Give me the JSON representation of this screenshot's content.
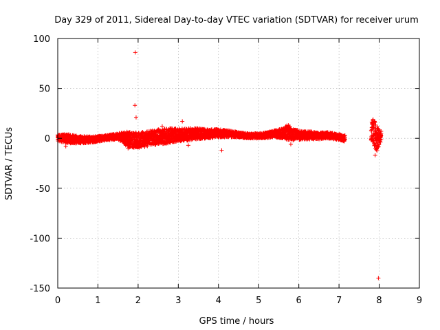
{
  "chart_data": {
    "type": "scatter",
    "title": "Day 329 of 2011, Sidereal Day-to-day VTEC variation (SDTVAR) for receiver urum",
    "xlabel": "GPS time / hours",
    "ylabel": "SDTVAR / TECUs",
    "xlim": [
      0,
      9
    ],
    "ylim": [
      -150,
      100
    ],
    "xticks": [
      0,
      1,
      2,
      3,
      4,
      5,
      6,
      7,
      8,
      9
    ],
    "yticks": [
      -150,
      -100,
      -50,
      0,
      50,
      100
    ],
    "grid": true,
    "marker": "+",
    "colors": {
      "points": "#ff0000",
      "grid": "#a0a0a0",
      "frame": "#000000"
    },
    "band": {
      "name": "SDTVAR",
      "x": [
        0.0,
        0.3,
        0.6,
        0.9,
        1.2,
        1.5,
        1.75,
        2.0,
        2.25,
        2.5,
        2.75,
        3.0,
        3.25,
        3.5,
        3.75,
        4.0,
        4.25,
        4.5,
        4.75,
        5.0,
        5.2,
        5.4,
        5.6,
        5.75,
        5.9,
        6.1,
        6.3,
        6.5,
        6.7,
        6.9,
        7.05,
        7.15
      ],
      "upper": [
        4,
        4,
        2,
        2,
        3,
        5,
        7,
        6,
        7,
        9,
        10,
        10,
        10,
        10,
        9,
        9,
        8,
        6,
        5,
        5,
        6,
        8,
        10,
        14,
        9,
        7,
        7,
        6,
        6,
        5,
        4,
        3
      ],
      "lower": [
        -3,
        -5,
        -5,
        -4,
        -2,
        -1,
        -9,
        -10,
        -8,
        -6,
        -5,
        -3,
        -2,
        -1,
        0,
        1,
        1,
        1,
        0,
        0,
        0,
        1,
        0,
        -2,
        -2,
        -1,
        -1,
        -1,
        0,
        -1,
        -2,
        -4
      ],
      "late_x": [
        7.8,
        7.85,
        7.9,
        7.95,
        8.0,
        8.05
      ],
      "late_upper": [
        15,
        20,
        16,
        12,
        9,
        7
      ],
      "late_lower": [
        -2,
        -5,
        -10,
        -14,
        -8,
        -4
      ]
    },
    "outliers": {
      "x": [
        1.93,
        1.92,
        1.95,
        3.1,
        4.08,
        7.98,
        0.2,
        1.75,
        2.6,
        3.25,
        5.8,
        7.9
      ],
      "y": [
        86,
        33,
        21,
        17,
        -12,
        -140,
        -8,
        -10,
        12,
        -7,
        -6,
        -17
      ]
    }
  }
}
